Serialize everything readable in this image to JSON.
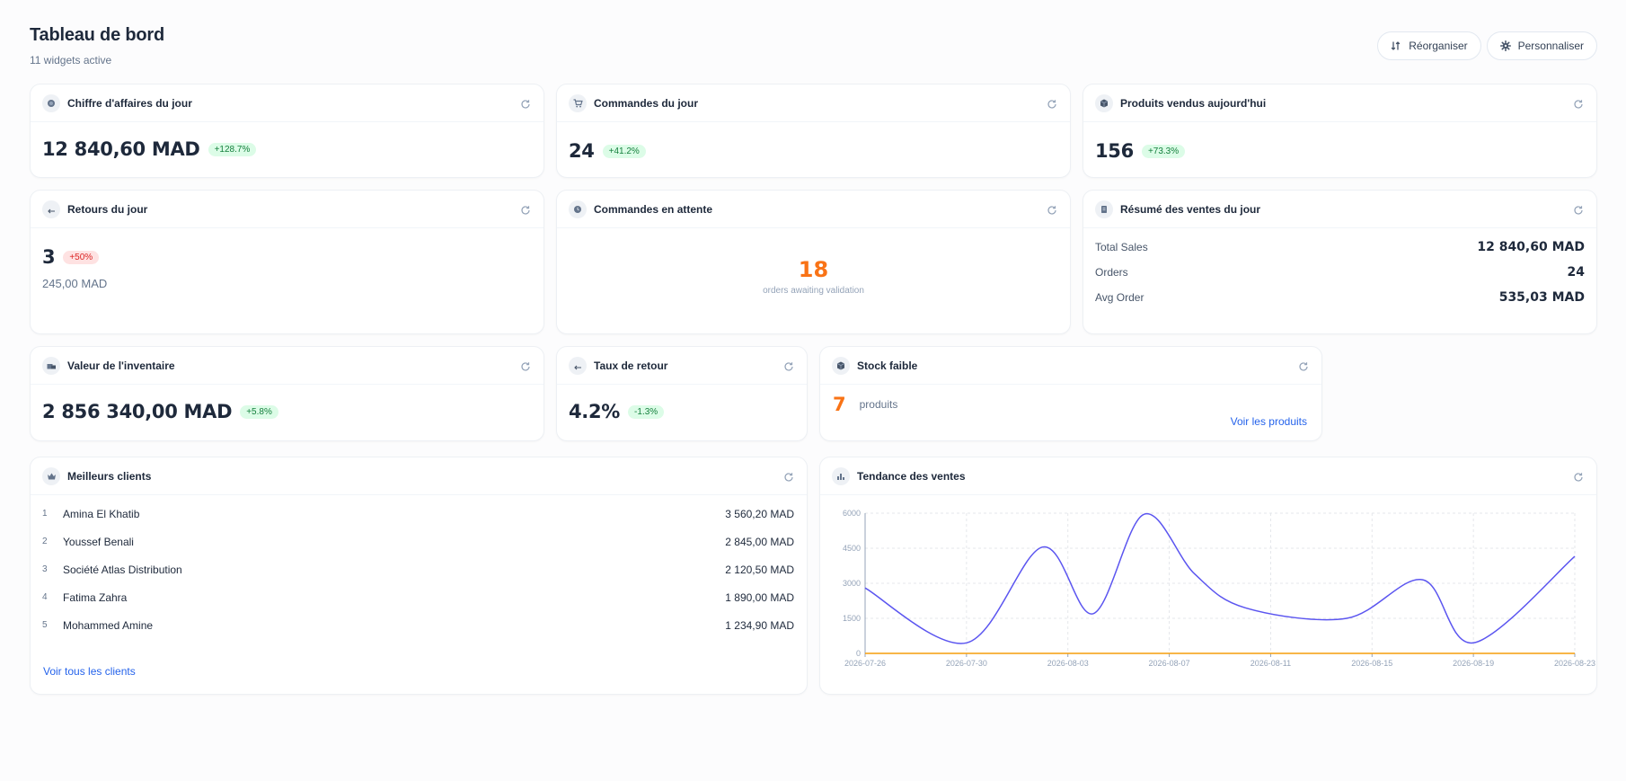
{
  "header": {
    "title": "Tableau de bord",
    "subtitle": "11 widgets active",
    "reorganize_label": "Réorganiser",
    "customize_label": "Personnaliser"
  },
  "widgets": {
    "revenue": {
      "title": "Chiffre d'affaires du jour",
      "value": "12 840,60 MAD",
      "change": "+128.7%"
    },
    "orders": {
      "title": "Commandes du jour",
      "value": "24",
      "change": "+41.2%"
    },
    "products_sold": {
      "title": "Produits vendus aujourd'hui",
      "value": "156",
      "change": "+73.3%"
    },
    "returns": {
      "title": "Retours du jour",
      "value": "3",
      "change": "+50%",
      "amount": "245,00 MAD"
    },
    "pending": {
      "title": "Commandes en attente",
      "value": "18",
      "caption": "orders awaiting validation"
    },
    "sales_summary": {
      "title": "Résumé des ventes du jour",
      "rows": [
        {
          "label": "Total Sales",
          "value": "12 840,60 MAD"
        },
        {
          "label": "Orders",
          "value": "24"
        },
        {
          "label": "Avg Order",
          "value": "535,03 MAD"
        }
      ]
    },
    "inventory": {
      "title": "Valeur de l'inventaire",
      "value": "2 856 340,00 MAD",
      "change": "+5.8%"
    },
    "return_rate": {
      "title": "Taux de retour",
      "value": "4.2%",
      "change": "-1.3%"
    },
    "low_stock": {
      "title": "Stock faible",
      "value": "7",
      "unit": "produits",
      "link": "Voir les produits"
    },
    "top_clients": {
      "title": "Meilleurs clients",
      "clients": [
        {
          "rank": "1",
          "name": "Amina El Khatib",
          "amount": "3 560,20 MAD"
        },
        {
          "rank": "2",
          "name": "Youssef Benali",
          "amount": "2 845,00 MAD"
        },
        {
          "rank": "3",
          "name": "Société Atlas Distribution",
          "amount": "2 120,50 MAD"
        },
        {
          "rank": "4",
          "name": "Fatima Zahra",
          "amount": "1 890,00 MAD"
        },
        {
          "rank": "5",
          "name": "Mohammed Amine",
          "amount": "1 234,90 MAD"
        }
      ],
      "link": "Voir tous les clients"
    },
    "sales_trend": {
      "title": "Tendance des ventes"
    }
  },
  "colors": {
    "accent_blue": "#2563eb",
    "orange": "#f97316",
    "line_primary": "#5b55f0",
    "line_secondary": "#f59e0b",
    "badge_green_bg": "#dcfce7",
    "badge_red_bg": "#fee2e2"
  },
  "chart_data": {
    "type": "line",
    "title": "Tendance des ventes",
    "xlabel": "",
    "ylabel": "",
    "ylim": [
      0,
      6000
    ],
    "yticks": [
      "0",
      "1500",
      "3000",
      "4500",
      "6000"
    ],
    "xticks": [
      "2026-07-26",
      "2026-07-30",
      "2026-08-03",
      "2026-08-07",
      "2026-08-11",
      "2026-08-15",
      "2026-08-19",
      "2026-08-23"
    ],
    "x": [
      "2026-07-26",
      "2026-07-30",
      "2026-08-02",
      "2026-08-04",
      "2026-08-06",
      "2026-08-08",
      "2026-08-10",
      "2026-08-14",
      "2026-08-17",
      "2026-08-19",
      "2026-08-23"
    ],
    "grid": true,
    "series": [
      {
        "values": [
          2800,
          450,
          4550,
          1700,
          5950,
          3400,
          1950,
          1500,
          3150,
          450,
          4150
        ],
        "color": "#5b55f0"
      },
      {
        "values": [
          0,
          0,
          0,
          0,
          0,
          0,
          0,
          0,
          0,
          0,
          0
        ],
        "color": "#f59e0b"
      }
    ]
  }
}
